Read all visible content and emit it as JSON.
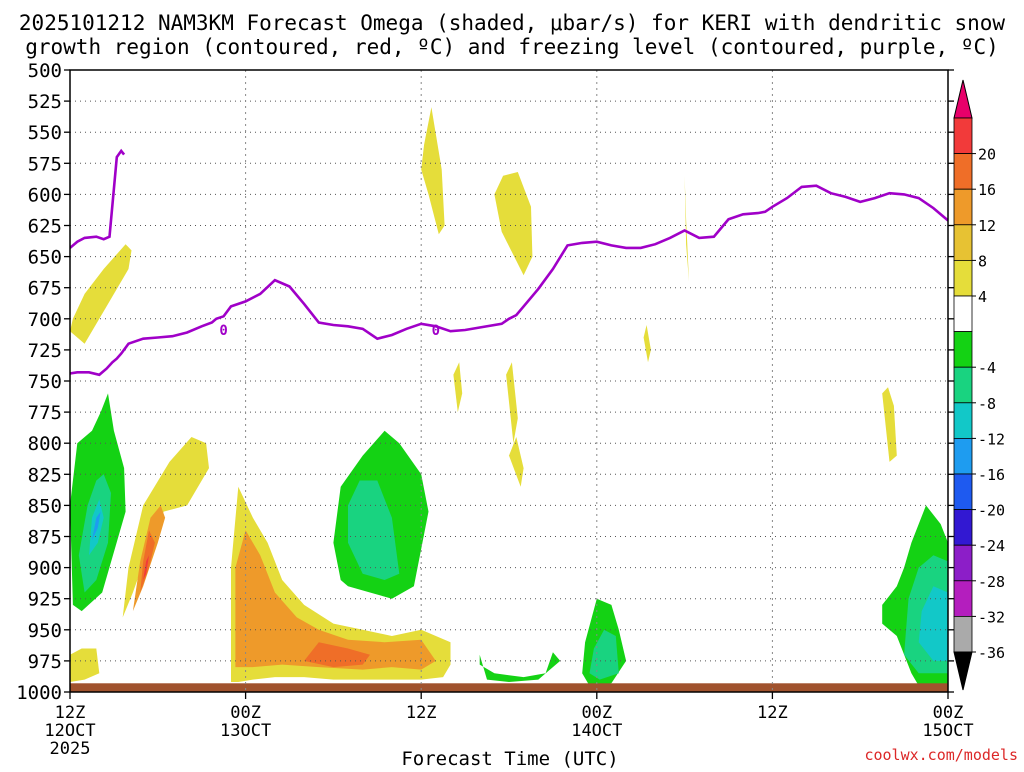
{
  "title_line1": "2025101212 NAM3KM Forecast Omega (shaded, μbar/s) for KERI with dendritic snow",
  "title_line2": "growth region (contoured, red, ºC) and freezing level (contoured, purple, ºC)",
  "xlabel": "Forecast Time (UTC)",
  "watermark": "coolwx.com/models",
  "chart_data": {
    "type": "heatmap",
    "x_unit": "forecast hours from 2025101212",
    "xlim": [
      0,
      60
    ],
    "y_unit": "mb",
    "ylim": [
      1000,
      500
    ],
    "y_ticks": [
      500,
      525,
      550,
      575,
      600,
      625,
      650,
      675,
      700,
      725,
      750,
      775,
      800,
      825,
      850,
      875,
      900,
      925,
      950,
      975,
      1000
    ],
    "x_ticks": [
      {
        "hour": 0,
        "label1": "12Z",
        "label2": "12OCT",
        "label3": "2025"
      },
      {
        "hour": 12,
        "label1": "00Z",
        "label2": "13OCT",
        "label3": ""
      },
      {
        "hour": 24,
        "label1": "12Z",
        "label2": "",
        "label3": ""
      },
      {
        "hour": 36,
        "label1": "00Z",
        "label2": "14OCT",
        "label3": ""
      },
      {
        "hour": 48,
        "label1": "12Z",
        "label2": "",
        "label3": ""
      },
      {
        "hour": 60,
        "label1": "00Z",
        "label2": "15OCT",
        "label3": ""
      }
    ],
    "grid": true,
    "colorbar": {
      "labels": [
        "20",
        "16",
        "12",
        "8",
        "4",
        "-4",
        "-8",
        "-12",
        "-16",
        "-20",
        "-24",
        "-28",
        "-32",
        "-36"
      ],
      "colors": [
        "#e8006a",
        "#f23a3a",
        "#ef6e28",
        "#ee9a2a",
        "#e7c233",
        "#e5dd3a",
        "#ffffff",
        "#14d214",
        "#19d380",
        "#12c8c8",
        "#1e9cf0",
        "#1e5af0",
        "#3218d2",
        "#8c1ec8",
        "#b41ebe",
        "#aaaaaa",
        "#000000"
      ]
    },
    "freezing_level": {
      "color": "#a000c8",
      "label": "0",
      "series": [
        {
          "x": [
            0,
            0.5,
            1.3,
            2.0,
            2.5,
            2.9,
            3.2,
            3.5,
            4.0,
            5.0,
            6.0,
            7.0,
            8.0,
            9.0,
            9.7,
            10.0,
            10.5,
            11.0,
            12.0,
            13.0,
            14.0,
            15.0,
            16.0,
            17.0,
            18.0,
            19.0,
            20.0,
            21.0,
            22.0,
            23.0,
            24.0,
            25.0,
            26.0,
            27.0,
            28.0,
            29.5,
            30.0,
            30.5,
            31.0,
            32.0,
            33.0,
            34.0,
            35.0,
            36.0,
            37.0,
            38.0,
            39.0,
            40.0,
            41.0,
            42.0,
            43.0,
            44.0,
            45.0,
            46.0,
            47.0,
            47.5,
            48.0,
            49.0,
            50.0,
            51.0,
            52.0,
            53.0,
            54.0,
            55.0,
            56.0,
            57.0,
            58.0,
            59.0,
            60.0
          ],
          "y": [
            744,
            743,
            743,
            745,
            740,
            735,
            732,
            728,
            720,
            716,
            715,
            714,
            711,
            706,
            703,
            700,
            698,
            690,
            686,
            680,
            669,
            674,
            688,
            703,
            705,
            706,
            708,
            716,
            713,
            708,
            704,
            706,
            710,
            709,
            707,
            704,
            700,
            697,
            690,
            676,
            660,
            641,
            639,
            638,
            641,
            643,
            643,
            640,
            635,
            629,
            635,
            634,
            620,
            616,
            615,
            614,
            610,
            603,
            594,
            593,
            599,
            602,
            606,
            603,
            599,
            600,
            603,
            611,
            621
          ]
        },
        {
          "x": [
            0,
            0.5,
            1.0,
            1.8,
            2.3,
            2.7,
            3.2,
            3.5,
            3.7
          ],
          "y": [
            643,
            638,
            635,
            634,
            636,
            634,
            570,
            565,
            568
          ]
        }
      ],
      "label_positions": [
        {
          "x": 10.5,
          "y": 708
        },
        {
          "x": 25.0,
          "y": 708
        }
      ]
    },
    "omega_shading": [
      {
        "level": 4,
        "color": "#e5dd3a",
        "x": [
          1.0,
          2.5,
          4.0,
          4.2,
          3.8,
          2.3,
          1.0,
          0.2,
          0.0
        ],
        "y": [
          720,
          690,
          660,
          645,
          640,
          660,
          680,
          700,
          710
        ]
      },
      {
        "level": 4,
        "color": "#e5dd3a",
        "x": [
          24.0,
          24.5,
          25.2,
          25.6,
          25.4,
          24.7,
          24.2
        ],
        "y": [
          580,
          600,
          632,
          625,
          580,
          530,
          560
        ]
      },
      {
        "level": 4,
        "color": "#e5dd3a",
        "x": [
          29.0,
          29.5,
          31.0,
          31.6,
          31.5,
          30.6,
          29.6
        ],
        "y": [
          600,
          630,
          665,
          650,
          610,
          582,
          585
        ]
      },
      {
        "level": 4,
        "color": "#e5dd3a",
        "x": [
          42.0,
          42.1,
          42.3,
          42.1
        ],
        "y": [
          585,
          640,
          670,
          620
        ]
      },
      {
        "level": 4,
        "color": "#e5dd3a",
        "x": [
          26.2,
          26.5,
          26.8,
          26.6
        ],
        "y": [
          745,
          775,
          760,
          735
        ]
      },
      {
        "level": 4,
        "color": "#e5dd3a",
        "x": [
          29.8,
          30.3,
          30.6,
          30.2
        ],
        "y": [
          745,
          800,
          780,
          735
        ]
      },
      {
        "level": 4,
        "color": "#e5dd3a",
        "x": [
          30.0,
          30.8,
          31.0,
          30.5
        ],
        "y": [
          810,
          835,
          820,
          795
        ]
      },
      {
        "level": 4,
        "color": "#e5dd3a",
        "x": [
          39.2,
          39.5,
          39.7,
          39.4
        ],
        "y": [
          715,
          735,
          725,
          705
        ]
      },
      {
        "level": 4,
        "color": "#e5dd3a",
        "x": [
          55.5,
          56.0,
          56.5,
          56.3,
          55.9
        ],
        "y": [
          760,
          815,
          810,
          770,
          755
        ]
      },
      {
        "level": 4,
        "color": "#e5dd3a",
        "x": [
          3.6,
          4.3,
          5.5,
          6.4,
          8.0,
          9.5,
          9.3,
          8.3,
          6.8,
          5.0,
          4.0
        ],
        "y": [
          940,
          920,
          880,
          855,
          850,
          820,
          800,
          795,
          815,
          850,
          900
        ]
      },
      {
        "level": 4,
        "color": "#e5dd3a",
        "x": [
          11.0,
          11.5,
          12.5,
          14.0,
          16.0,
          18.0,
          20.0,
          22.0,
          24.0,
          25.5,
          26.0,
          26.0,
          24.0,
          22.0,
          20.0,
          18.0,
          16.0,
          14.5,
          13.5,
          12.5,
          11.5,
          11.0
        ],
        "y": [
          992,
          992,
          990,
          988,
          988,
          990,
          990,
          990,
          990,
          988,
          978,
          960,
          950,
          955,
          950,
          945,
          930,
          910,
          880,
          860,
          835,
          900
        ]
      },
      {
        "level": 4,
        "color": "#e5dd3a",
        "x": [
          0,
          1.0,
          2.0,
          1.8,
          0.8,
          0
        ],
        "y": [
          992,
          990,
          985,
          965,
          965,
          970
        ]
      },
      {
        "level": 8,
        "color": "#ee9a2a",
        "x": [
          4.3,
          5.0,
          6.0,
          6.5,
          6.2,
          5.5,
          4.8
        ],
        "y": [
          935,
          915,
          880,
          860,
          850,
          860,
          895
        ]
      },
      {
        "level": 8,
        "color": "#ee9a2a",
        "x": [
          11.3,
          12.5,
          14.5,
          17.0,
          20.0,
          22.0,
          24.0,
          25.0,
          24.0,
          21.5,
          19.0,
          17.0,
          15.5,
          14.0,
          13.0,
          12.0,
          11.3
        ],
        "y": [
          980,
          980,
          978,
          980,
          982,
          980,
          982,
          975,
          958,
          960,
          958,
          950,
          940,
          920,
          890,
          870,
          900
        ]
      },
      {
        "level": 12,
        "color": "#ef6e28",
        "x": [
          16.0,
          18.0,
          20.0,
          20.5,
          19.0,
          17.0
        ],
        "y": [
          975,
          980,
          978,
          970,
          965,
          960
        ]
      },
      {
        "level": 12,
        "color": "#ef6e28",
        "x": [
          4.8,
          5.4,
          5.8,
          5.4,
          5.0
        ],
        "y": [
          920,
          900,
          880,
          870,
          895
        ]
      },
      {
        "level": 20,
        "color": "#f23a3a",
        "x": [
          5.0,
          5.2,
          5.4,
          5.2
        ],
        "y": [
          910,
          905,
          890,
          895
        ]
      },
      {
        "level": -4,
        "color": "#14d214",
        "x": [
          0.2,
          0.8,
          2.2,
          3.8,
          3.7,
          3.0,
          2.6,
          2.1,
          1.5,
          0.5,
          0.0
        ],
        "y": [
          930,
          935,
          920,
          855,
          820,
          790,
          760,
          775,
          790,
          800,
          850
        ]
      },
      {
        "level": -4,
        "color": "#14d214",
        "x": [
          18.0,
          18.5,
          19.0,
          20.5,
          22.0,
          23.5,
          24.5,
          24.0,
          22.5,
          21.5,
          20.0,
          18.5
        ],
        "y": [
          880,
          910,
          915,
          920,
          925,
          915,
          855,
          825,
          800,
          790,
          810,
          835
        ]
      },
      {
        "level": -4,
        "color": "#14d214",
        "x": [
          35.0,
          35.5,
          36.0,
          37.0,
          38.0,
          37.5,
          37.0,
          36.0,
          35.2
        ],
        "y": [
          985,
          995,
          995,
          993,
          975,
          950,
          930,
          925,
          960
        ]
      },
      {
        "level": -4,
        "color": "#14d214",
        "x": [
          55.5,
          56.5,
          57.5,
          58.0,
          59.0,
          60.0,
          60.0,
          59.5,
          58.5,
          57.5,
          57.0,
          56.5,
          55.5
        ],
        "y": [
          945,
          955,
          985,
          995,
          995,
          995,
          880,
          865,
          850,
          880,
          900,
          915,
          930
        ]
      },
      {
        "level": -4,
        "color": "#14d214",
        "x": [
          28.0,
          28.5,
          30.0,
          32.0,
          33.5,
          33.0,
          32.5,
          31.0,
          29.0,
          28.0
        ],
        "y": [
          970,
          990,
          992,
          990,
          975,
          968,
          985,
          988,
          985,
          978
        ]
      },
      {
        "level": -8,
        "color": "#19d380",
        "x": [
          1.0,
          1.8,
          2.6,
          2.8,
          2.3,
          1.8,
          1.2,
          0.6
        ],
        "y": [
          920,
          910,
          880,
          840,
          825,
          830,
          850,
          890
        ]
      },
      {
        "level": -8,
        "color": "#19d380",
        "x": [
          19.0,
          20.0,
          21.5,
          22.5,
          22.0,
          21.0,
          19.8,
          19.0
        ],
        "y": [
          880,
          905,
          910,
          905,
          860,
          830,
          830,
          850
        ]
      },
      {
        "level": -8,
        "color": "#19d380",
        "x": [
          35.5,
          36.2,
          37.5,
          37.3,
          36.5,
          35.8
        ],
        "y": [
          985,
          990,
          985,
          955,
          950,
          965
        ]
      },
      {
        "level": -8,
        "color": "#19d380",
        "x": [
          57.0,
          58.0,
          60.0,
          60.0,
          59.0,
          58.0,
          57.3
        ],
        "y": [
          970,
          985,
          985,
          895,
          890,
          900,
          925
        ]
      },
      {
        "level": -12,
        "color": "#12c8c8",
        "x": [
          1.3,
          1.9,
          2.3,
          2.0,
          1.5
        ],
        "y": [
          890,
          880,
          860,
          845,
          860
        ]
      },
      {
        "level": -12,
        "color": "#12c8c8",
        "x": [
          58.0,
          59.0,
          60.0,
          60.0,
          59.0,
          58.2
        ],
        "y": [
          960,
          975,
          975,
          920,
          915,
          935
        ]
      },
      {
        "level": -16,
        "color": "#1e9cf0",
        "x": [
          1.5,
          1.9,
          2.1,
          1.8
        ],
        "y": [
          878,
          868,
          855,
          860
        ]
      }
    ],
    "terrain": {
      "color": "#a0522d",
      "surface_mb": 993
    }
  }
}
